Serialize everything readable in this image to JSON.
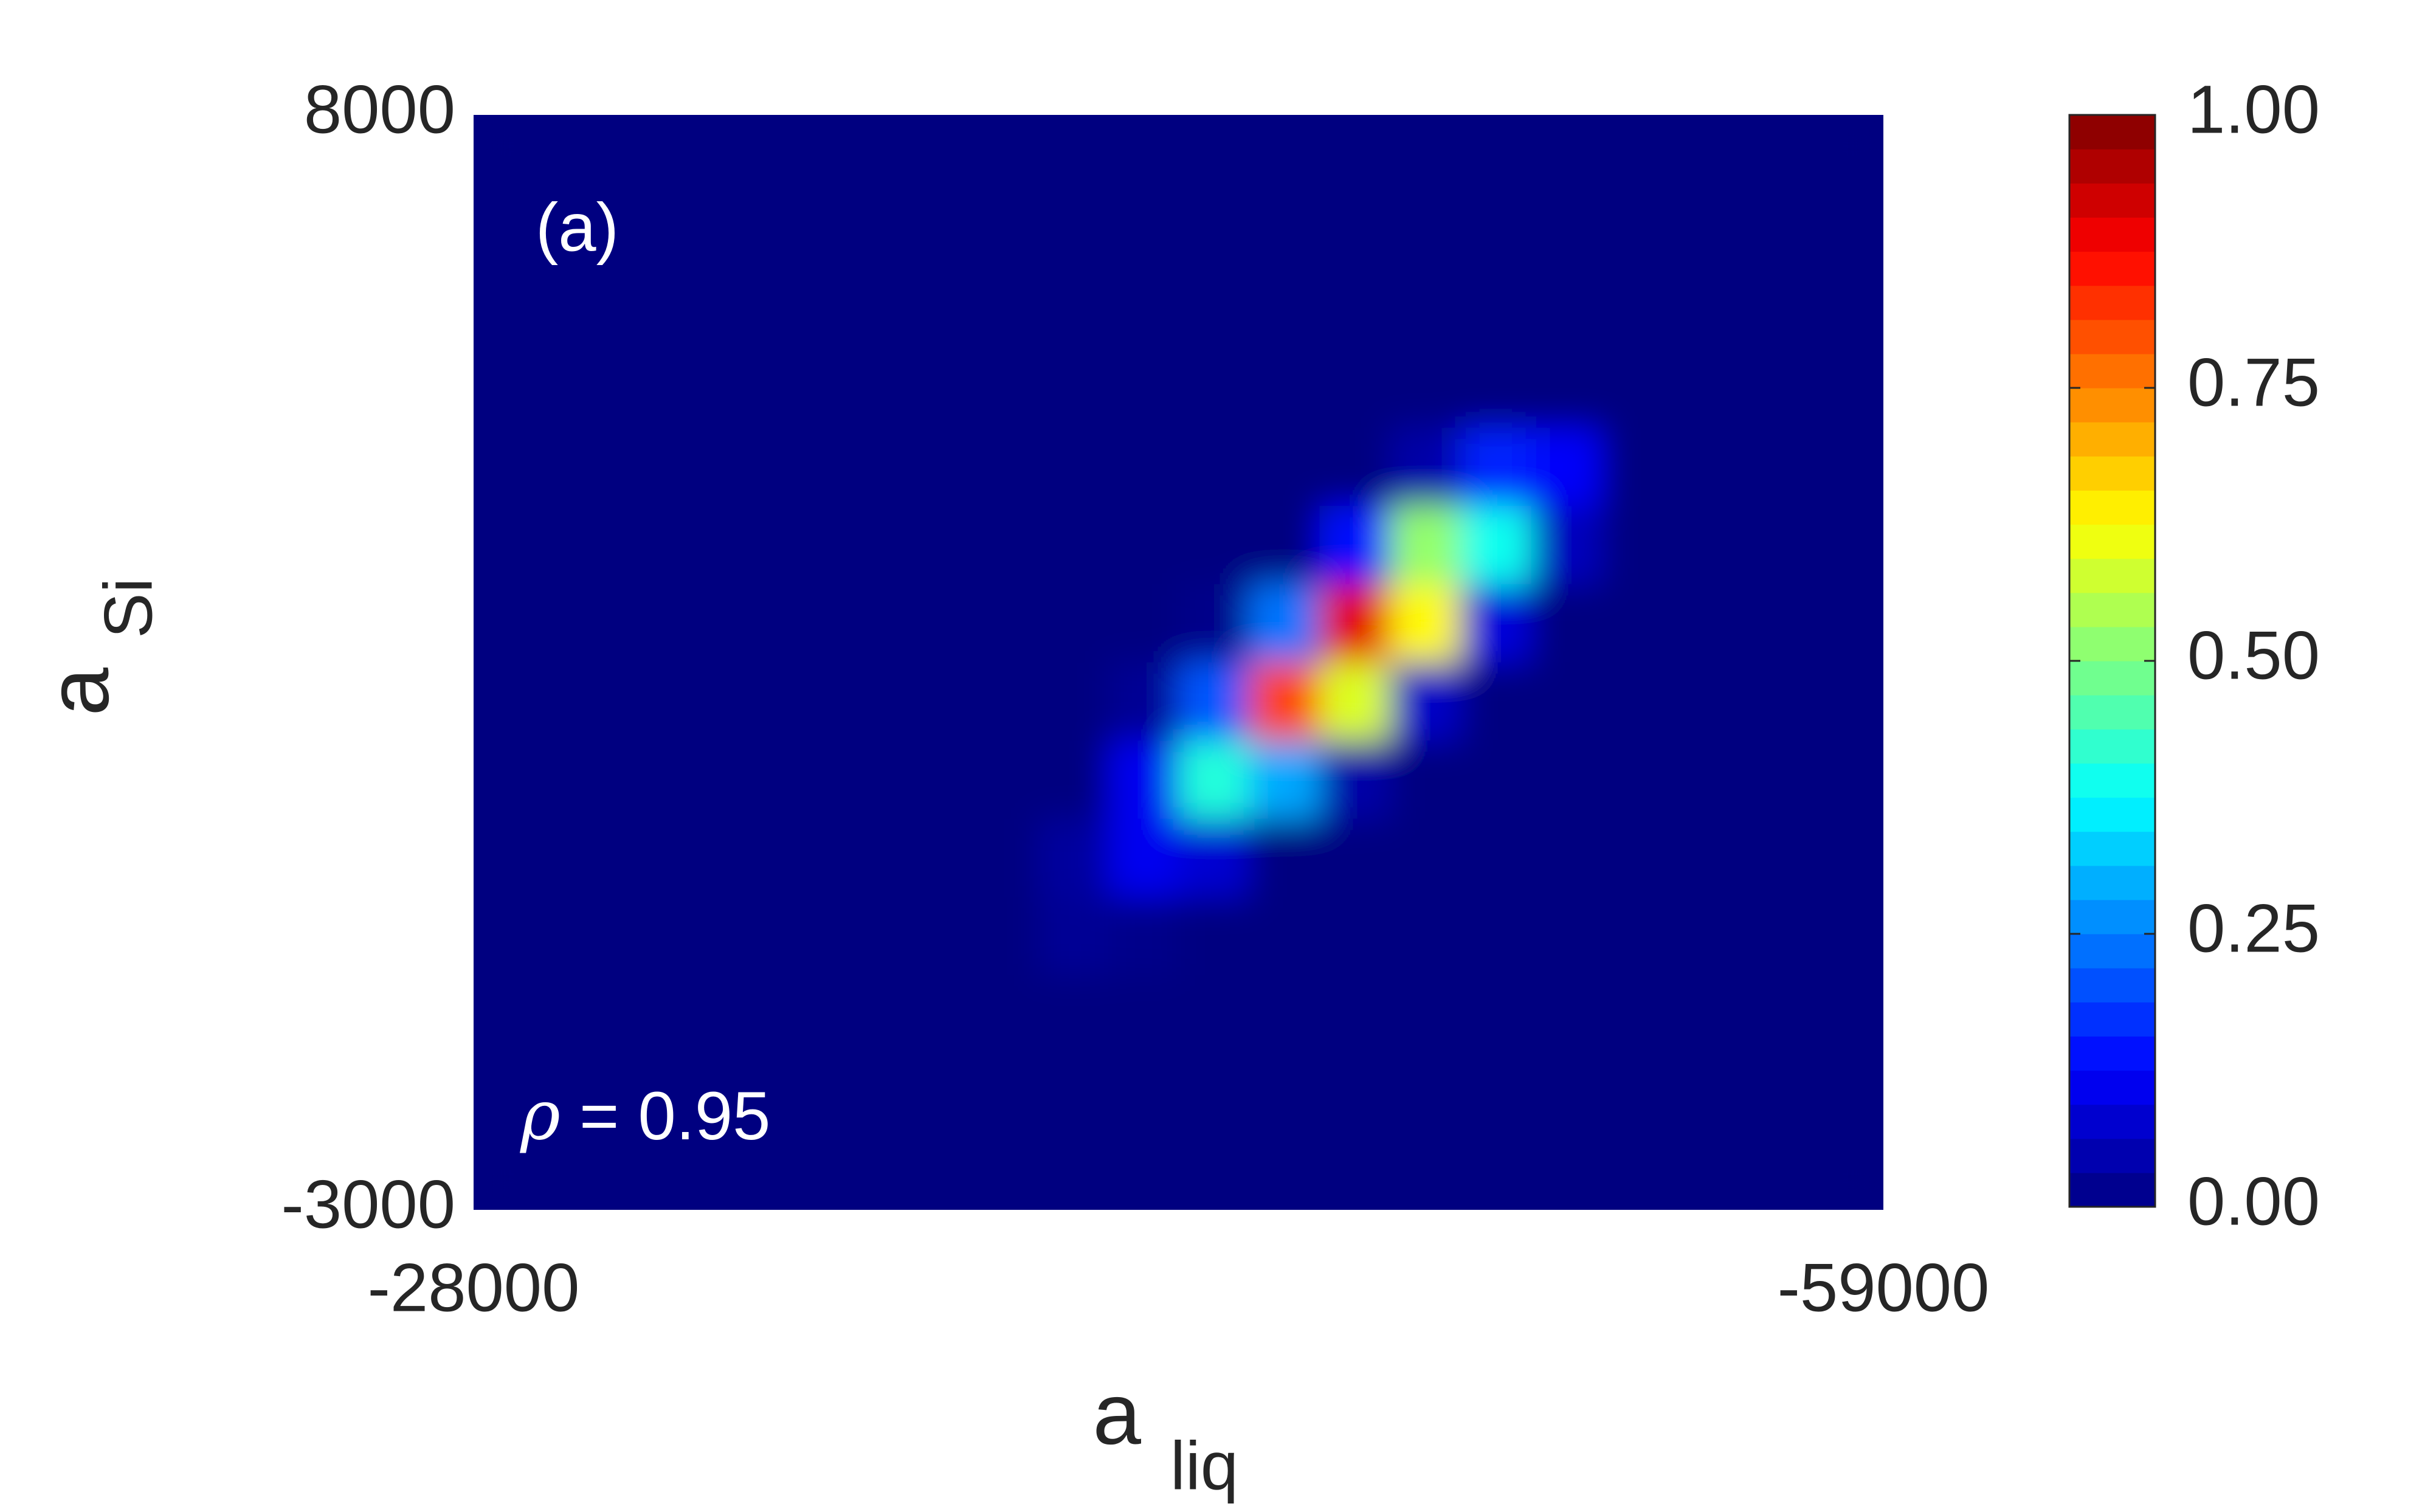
{
  "chart_data": {
    "type": "heatmap",
    "colormap": "jet",
    "xlabel": {
      "base": "a",
      "subscript": "liq"
    },
    "ylabel": {
      "base": "a",
      "subscript": "Si"
    },
    "annotations": [
      "(a)",
      "ρ = 0.95"
    ],
    "xlim": [
      -28000,
      -59000
    ],
    "ylim": [
      -3000,
      8000
    ],
    "xticks": [
      -28000,
      -59000
    ],
    "yticks": [
      -3000,
      8000
    ],
    "z": [
      [
        0,
        0,
        0,
        0,
        0,
        0,
        0,
        0,
        0,
        0,
        0,
        0,
        0,
        0,
        0,
        0,
        0,
        0,
        0,
        0
      ],
      [
        0,
        0,
        0,
        0,
        0,
        0,
        0,
        0,
        0,
        0,
        0,
        0,
        0,
        0,
        0,
        0,
        0,
        0,
        0,
        0
      ],
      [
        0,
        0,
        0,
        0,
        0,
        0,
        0,
        0,
        0,
        0,
        0,
        0,
        0,
        0,
        0,
        0,
        0,
        0,
        0,
        0
      ],
      [
        0,
        0,
        0,
        0,
        0,
        0,
        0,
        0,
        0,
        0,
        0,
        0,
        0,
        0,
        0,
        0,
        0,
        0,
        0,
        0
      ],
      [
        0,
        0,
        0,
        0,
        0,
        0,
        0,
        0,
        0,
        0,
        0,
        0,
        0,
        0.04,
        0.16,
        0.12,
        0,
        0,
        0,
        0
      ],
      [
        0,
        0,
        0,
        0,
        0,
        0,
        0,
        0,
        0,
        0,
        0,
        0,
        0.14,
        0.52,
        0.39,
        0.06,
        0,
        0,
        0,
        0
      ],
      [
        0,
        0,
        0,
        0,
        0,
        0,
        0,
        0,
        0,
        0,
        0.01,
        0.24,
        0.9,
        0.63,
        0.09,
        0,
        0,
        0,
        0,
        0
      ],
      [
        0,
        0,
        0,
        0,
        0,
        0,
        0,
        0,
        0,
        0.02,
        0.21,
        0.81,
        0.59,
        0.07,
        0,
        0,
        0,
        0,
        0,
        0
      ],
      [
        0,
        0,
        0,
        0,
        0,
        0,
        0,
        0,
        0,
        0.11,
        0.41,
        0.29,
        0.04,
        0,
        0,
        0,
        0,
        0,
        0,
        0
      ],
      [
        0,
        0,
        0,
        0,
        0,
        0,
        0,
        0,
        0.03,
        0.11,
        0.08,
        0,
        0,
        0,
        0,
        0,
        0,
        0,
        0,
        0
      ],
      [
        0,
        0,
        0,
        0,
        0,
        0,
        0,
        0,
        0.02,
        0.01,
        0,
        0,
        0,
        0,
        0,
        0,
        0,
        0,
        0,
        0
      ],
      [
        0,
        0,
        0,
        0,
        0,
        0,
        0,
        0,
        0,
        0,
        0,
        0,
        0,
        0,
        0,
        0,
        0,
        0,
        0,
        0
      ],
      [
        0,
        0,
        0,
        0,
        0,
        0,
        0,
        0,
        0,
        0,
        0,
        0,
        0,
        0,
        0,
        0,
        0,
        0,
        0,
        0
      ],
      [
        0,
        0,
        0,
        0,
        0,
        0,
        0,
        0,
        0,
        0,
        0,
        0,
        0,
        0,
        0,
        0,
        0,
        0,
        0,
        0
      ]
    ],
    "colorbar": {
      "lim": [
        0,
        1
      ],
      "ticks": [
        {
          "value": 0,
          "label": "0.00"
        },
        {
          "value": 0.25,
          "label": "0.25"
        },
        {
          "value": 0.5,
          "label": "0.50"
        },
        {
          "value": 0.75,
          "label": "0.75"
        },
        {
          "value": 1,
          "label": "1.00"
        }
      ]
    }
  }
}
